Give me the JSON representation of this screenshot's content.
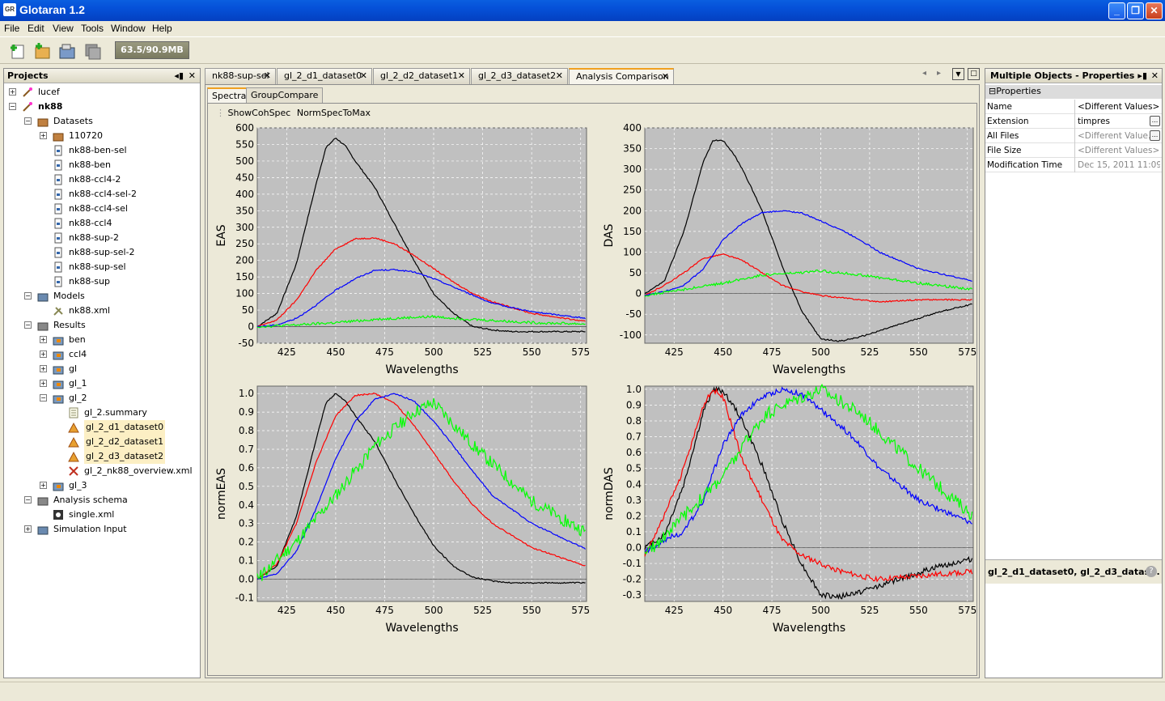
{
  "window": {
    "title": "Glotaran 1.2",
    "icon_label": "GR"
  },
  "menu": [
    "File",
    "Edit",
    "View",
    "Tools",
    "Window",
    "Help"
  ],
  "toolbar": {
    "memory": "63.5/90.9MB"
  },
  "projects": {
    "title": "Projects",
    "items": [
      {
        "label": "lucef",
        "bold": false
      },
      {
        "label": "nk88",
        "bold": true
      },
      {
        "label": "Datasets"
      },
      {
        "label": "110720"
      },
      {
        "label": "nk88-ben-sel"
      },
      {
        "label": "nk88-ben"
      },
      {
        "label": "nk88-ccl4-2"
      },
      {
        "label": "nk88-ccl4-sel-2"
      },
      {
        "label": "nk88-ccl4-sel"
      },
      {
        "label": "nk88-ccl4"
      },
      {
        "label": "nk88-sup-2"
      },
      {
        "label": "nk88-sup-sel-2"
      },
      {
        "label": "nk88-sup-sel"
      },
      {
        "label": "nk88-sup"
      },
      {
        "label": "Models"
      },
      {
        "label": "nk88.xml"
      },
      {
        "label": "Results"
      },
      {
        "label": "ben"
      },
      {
        "label": "ccl4"
      },
      {
        "label": "gl"
      },
      {
        "label": "gl_1"
      },
      {
        "label": "gl_2"
      },
      {
        "label": "gl_2.summary"
      },
      {
        "label": "gl_2_d1_dataset0"
      },
      {
        "label": "gl_2_d2_dataset1"
      },
      {
        "label": "gl_2_d3_dataset2"
      },
      {
        "label": "gl_2_nk88_overview.xml"
      },
      {
        "label": "gl_3"
      },
      {
        "label": "Analysis schema"
      },
      {
        "label": "single.xml"
      },
      {
        "label": "Simulation Input"
      }
    ]
  },
  "editor_tabs": [
    "nk88-sup-sel",
    "gl_2_d1_dataset0",
    "gl_2_d2_dataset1",
    "gl_2_d3_dataset2",
    "Analysis Comparison"
  ],
  "sub_tabs": [
    "Spectra",
    "GroupCompare"
  ],
  "plot_options": [
    "ShowCohSpec",
    "NormSpecToMax"
  ],
  "colors": {
    "series": [
      "#000000",
      "#ff0000",
      "#0000ff",
      "#00ff00"
    ],
    "plot_bg": "#c0c0c0"
  },
  "chart_data": [
    {
      "type": "line",
      "title": "",
      "xlabel": "Wavelengths",
      "ylabel": "EAS",
      "xlim": [
        410,
        578
      ],
      "ylim": [
        -50,
        600
      ],
      "xticks": [
        "425",
        "450",
        "475",
        "500",
        "525",
        "550",
        "575"
      ],
      "yticks": [
        "600",
        "550",
        "500",
        "450",
        "400",
        "350",
        "300",
        "250",
        "200",
        "150",
        "100",
        "50",
        "0",
        "-50"
      ],
      "series": [
        {
          "x": [
            410,
            420,
            430,
            440,
            445,
            450,
            455,
            460,
            470,
            480,
            490,
            500,
            510,
            520,
            530,
            540,
            550,
            560,
            578
          ],
          "values": [
            0,
            40,
            190,
            430,
            540,
            570,
            545,
            500,
            420,
            310,
            200,
            100,
            40,
            0,
            -10,
            -15,
            -15,
            -15,
            -15
          ]
        },
        {
          "x": [
            410,
            420,
            430,
            440,
            450,
            460,
            470,
            480,
            490,
            500,
            510,
            520,
            530,
            550,
            578
          ],
          "values": [
            0,
            20,
            80,
            170,
            235,
            265,
            268,
            250,
            215,
            175,
            135,
            100,
            75,
            40,
            15
          ]
        },
        {
          "x": [
            410,
            420,
            430,
            440,
            450,
            460,
            470,
            480,
            490,
            500,
            510,
            520,
            530,
            550,
            578
          ],
          "values": [
            0,
            5,
            25,
            65,
            110,
            145,
            170,
            172,
            165,
            145,
            120,
            95,
            70,
            45,
            25
          ]
        },
        {
          "x": [
            410,
            430,
            450,
            470,
            490,
            500,
            520,
            550,
            578
          ],
          "values": [
            0,
            5,
            12,
            22,
            28,
            30,
            22,
            12,
            8
          ]
        }
      ]
    },
    {
      "type": "line",
      "title": "",
      "xlabel": "Wavelengths",
      "ylabel": "DAS",
      "xlim": [
        410,
        578
      ],
      "ylim": [
        -120,
        400
      ],
      "xticks": [
        "425",
        "450",
        "475",
        "500",
        "525",
        "550",
        "575"
      ],
      "yticks": [
        "400",
        "350",
        "300",
        "250",
        "200",
        "150",
        "100",
        "50",
        "0",
        "-50",
        "-100"
      ],
      "series": [
        {
          "x": [
            410,
            420,
            430,
            440,
            445,
            450,
            455,
            460,
            470,
            480,
            490,
            500,
            510,
            520,
            530,
            540,
            550,
            560,
            578
          ],
          "values": [
            0,
            30,
            150,
            320,
            370,
            370,
            340,
            300,
            200,
            70,
            -40,
            -110,
            -115,
            -105,
            -90,
            -75,
            -60,
            -45,
            -25
          ]
        },
        {
          "x": [
            410,
            420,
            430,
            440,
            450,
            460,
            470,
            480,
            490,
            500,
            510,
            520,
            530,
            550,
            578
          ],
          "values": [
            -5,
            20,
            50,
            85,
            95,
            80,
            50,
            20,
            5,
            -5,
            -10,
            -15,
            -20,
            -15,
            -15
          ]
        },
        {
          "x": [
            410,
            420,
            430,
            440,
            450,
            460,
            470,
            480,
            490,
            500,
            510,
            520,
            530,
            550,
            578
          ],
          "values": [
            -5,
            5,
            20,
            60,
            130,
            170,
            195,
            200,
            195,
            175,
            155,
            130,
            100,
            60,
            30
          ]
        },
        {
          "x": [
            410,
            430,
            450,
            470,
            490,
            500,
            520,
            550,
            578
          ],
          "values": [
            -5,
            10,
            25,
            45,
            50,
            55,
            45,
            25,
            10
          ]
        }
      ]
    },
    {
      "type": "line",
      "title": "",
      "xlabel": "Wavelengths",
      "ylabel": "normEAS",
      "xlim": [
        410,
        578
      ],
      "ylim": [
        -0.12,
        1.04
      ],
      "xticks": [
        "425",
        "450",
        "475",
        "500",
        "525",
        "550",
        "575"
      ],
      "yticks": [
        "1.0",
        "0.9",
        "0.8",
        "0.7",
        "0.6",
        "0.5",
        "0.4",
        "0.3",
        "0.2",
        "0.1",
        "0.0",
        "-0.1"
      ],
      "series": [
        {
          "x": [
            410,
            420,
            430,
            440,
            445,
            450,
            455,
            460,
            470,
            480,
            490,
            500,
            510,
            520,
            530,
            540,
            550,
            560,
            578
          ],
          "values": [
            0,
            0.07,
            0.34,
            0.75,
            0.95,
            1.0,
            0.96,
            0.88,
            0.74,
            0.54,
            0.35,
            0.18,
            0.07,
            0.01,
            -0.01,
            -0.02,
            -0.02,
            -0.02,
            -0.02
          ]
        },
        {
          "x": [
            410,
            420,
            430,
            440,
            450,
            460,
            470,
            480,
            490,
            500,
            510,
            520,
            530,
            550,
            578
          ],
          "values": [
            0,
            0.08,
            0.3,
            0.63,
            0.88,
            0.99,
            1.0,
            0.95,
            0.83,
            0.68,
            0.53,
            0.4,
            0.3,
            0.17,
            0.07
          ]
        },
        {
          "x": [
            410,
            420,
            430,
            440,
            450,
            460,
            470,
            480,
            490,
            500,
            510,
            520,
            530,
            550,
            578
          ],
          "values": [
            0,
            0.03,
            0.15,
            0.38,
            0.65,
            0.85,
            0.97,
            1.0,
            0.96,
            0.85,
            0.72,
            0.58,
            0.45,
            0.3,
            0.16
          ]
        },
        {
          "x": [
            410,
            430,
            450,
            470,
            490,
            500,
            520,
            550,
            578
          ],
          "values": [
            0,
            0.2,
            0.45,
            0.72,
            0.9,
            0.95,
            0.72,
            0.42,
            0.25
          ]
        }
      ]
    },
    {
      "type": "line",
      "title": "",
      "xlabel": "Wavelengths",
      "ylabel": "normDAS",
      "xlim": [
        410,
        578
      ],
      "ylim": [
        -0.34,
        1.02
      ],
      "xticks": [
        "425",
        "450",
        "475",
        "500",
        "525",
        "550",
        "575"
      ],
      "yticks": [
        "1.0",
        "0.9",
        "0.8",
        "0.7",
        "0.6",
        "0.5",
        "0.4",
        "0.3",
        "0.2",
        "0.1",
        "0.0",
        "-0.1",
        "-0.2",
        "-0.3"
      ],
      "series": [
        {
          "x": [
            410,
            420,
            430,
            440,
            445,
            450,
            455,
            460,
            470,
            480,
            490,
            500,
            510,
            520,
            530,
            540,
            550,
            560,
            578
          ],
          "values": [
            0,
            0.08,
            0.4,
            0.86,
            1.0,
            0.99,
            0.9,
            0.8,
            0.52,
            0.18,
            -0.1,
            -0.3,
            -0.31,
            -0.28,
            -0.24,
            -0.2,
            -0.16,
            -0.12,
            -0.07
          ]
        },
        {
          "x": [
            410,
            420,
            430,
            440,
            445,
            450,
            460,
            470,
            480,
            490,
            500,
            510,
            520,
            530,
            550,
            578
          ],
          "values": [
            -0.05,
            0.2,
            0.5,
            0.9,
            1.0,
            0.95,
            0.55,
            0.3,
            0.05,
            -0.05,
            -0.1,
            -0.15,
            -0.18,
            -0.2,
            -0.18,
            -0.15
          ]
        },
        {
          "x": [
            410,
            420,
            430,
            440,
            450,
            460,
            470,
            480,
            490,
            500,
            510,
            520,
            530,
            550,
            578
          ],
          "values": [
            -0.03,
            0.05,
            0.1,
            0.3,
            0.65,
            0.85,
            0.95,
            1.0,
            0.97,
            0.87,
            0.77,
            0.65,
            0.5,
            0.3,
            0.15
          ]
        },
        {
          "x": [
            410,
            430,
            450,
            470,
            480,
            490,
            500,
            520,
            550,
            578
          ],
          "values": [
            -0.05,
            0.2,
            0.45,
            0.82,
            0.9,
            0.95,
            1.0,
            0.85,
            0.5,
            0.2
          ]
        }
      ]
    }
  ],
  "properties": {
    "title": "Multiple Objects - Properties",
    "section": "Properties",
    "rows": [
      {
        "key": "Name",
        "value": "<Different Values>"
      },
      {
        "key": "Extension",
        "value": "timpres"
      },
      {
        "key": "All Files",
        "value": "<Different Value..."
      },
      {
        "key": "File Size",
        "value": "<Different Values>"
      },
      {
        "key": "Modification Time",
        "value": "Dec 15, 2011 11:09..."
      }
    ],
    "footer": "gl_2_d1_dataset0, gl_2_d3_datas..."
  }
}
